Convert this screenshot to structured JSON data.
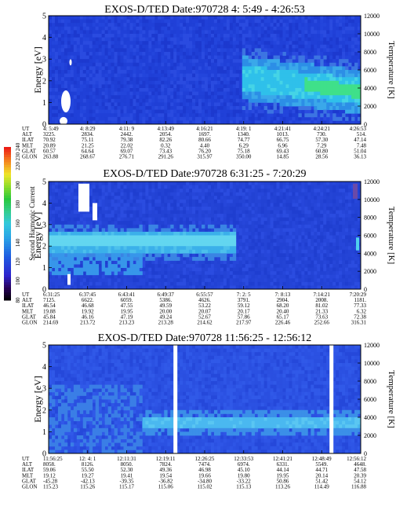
{
  "colorbar": {
    "title": "Second Harmonic Current",
    "ticks": [
      "240",
      "230",
      "220",
      "200",
      "180",
      "160",
      "140",
      "120",
      "100",
      "80"
    ]
  },
  "chart_data": [
    {
      "type": "heatmap",
      "title": "EXOS-D/TED   Date:970728  4: 5:49 - 4:26:53",
      "ylabel": "Energy [eV]",
      "ylabel_right": "Temperature [K]",
      "ylim": [
        0,
        5
      ],
      "ylim_right": [
        0,
        12000
      ],
      "yticks": [
        "0",
        "1",
        "2",
        "3",
        "4",
        "5"
      ],
      "yticks_right": [
        "0",
        "2000",
        "4000",
        "6000",
        "8000",
        "10000",
        "12000"
      ],
      "ephemeris": {
        "labels": [
          "UT",
          "ALT",
          "ILAT",
          "MLT",
          "GLAT",
          "GLON"
        ],
        "columns": [
          [
            "4: 5:49",
            "3225.",
            "70.92",
            "20.89",
            "60.57",
            "263.88"
          ],
          [
            "4: 8:29",
            "2834.",
            "75.11",
            "21.25",
            "64.64",
            "268.67"
          ],
          [
            "4:11: 9",
            "2442.",
            "79.38",
            "22.02",
            "69.07",
            "276.71"
          ],
          [
            "4:13:49",
            "2054.",
            "82.26",
            "0.32",
            "73.43",
            "291.26"
          ],
          [
            "4:16:21",
            "1697.",
            "80.66",
            "4.40",
            "76.20",
            "315.97"
          ],
          [
            "4:19: 1",
            "1340.",
            "74.77",
            "6.29",
            "75.18",
            "350.00"
          ],
          [
            "4:21:41",
            "1013.",
            "66.75",
            "6.96",
            "69.43",
            "14.85"
          ],
          [
            "4:24:21",
            "730.",
            "57.30",
            "7.29",
            "60.80",
            "28.56"
          ],
          [
            "4:26:53",
            "514.",
            "47.14",
            "7.48",
            "51.04",
            "36.13"
          ]
        ]
      },
      "gaps": []
    },
    {
      "type": "heatmap",
      "title": "EXOS-D/TED   Date:970728  6:31:25 - 7:20:29",
      "ylabel": "Energy [eV]",
      "ylabel_right": "Temperature [K]",
      "ylim": [
        0,
        5
      ],
      "ylim_right": [
        0,
        12000
      ],
      "yticks": [
        "0",
        "1",
        "2",
        "3",
        "4",
        "5"
      ],
      "yticks_right": [
        "0",
        "2000",
        "4000",
        "6000",
        "8000",
        "10000",
        "12000"
      ],
      "ephemeris": {
        "labels": [
          "UT",
          "ALT",
          "ILAT",
          "MLT",
          "GLAT",
          "GLON"
        ],
        "columns": [
          [
            "6:31:25",
            "7125.",
            "46.54",
            "19.88",
            "45.84",
            "214.69"
          ],
          [
            "6:37:45",
            "6622.",
            "46.68",
            "19.92",
            "46.16",
            "213.72"
          ],
          [
            "6:43:41",
            "6059.",
            "47.55",
            "19.95",
            "47.19",
            "213.23"
          ],
          [
            "6:49:37",
            "5386.",
            "49.59",
            "20.00",
            "49.24",
            "213.28"
          ],
          [
            "6:55:57",
            "4626.",
            "53.22",
            "20.07",
            "52.67",
            "214.62"
          ],
          [
            "7: 2: 5",
            "3791.",
            "59.12",
            "20.17",
            "57.86",
            "217.97"
          ],
          [
            "7: 8:13",
            "2904.",
            "68.20",
            "20.40",
            "65.17",
            "226.46"
          ],
          [
            "7:14:21",
            "2008.",
            "81.02",
            "21.33",
            "73.63",
            "252.66"
          ],
          [
            "7:20:29",
            "1181.",
            "77.33",
            "6.32",
            "72.38",
            "316.31"
          ]
        ]
      },
      "gaps": []
    },
    {
      "type": "heatmap",
      "title": "EXOS-D/TED   Date:970728  11:56:25 - 12:56:12",
      "ylabel": "Energy [eV]",
      "ylabel_right": "Temperature [K]",
      "ylim": [
        0,
        5
      ],
      "ylim_right": [
        0,
        12000
      ],
      "yticks": [
        "0",
        "1",
        "2",
        "3",
        "4",
        "5"
      ],
      "yticks_right": [
        "0",
        "2000",
        "4000",
        "6000",
        "8000",
        "10000",
        "12000"
      ],
      "ephemeris": {
        "labels": [
          "UT",
          "ALT",
          "ILAT",
          "MLT",
          "GLAT",
          "GLON"
        ],
        "columns": [
          [
            "11:56:25",
            "8058.",
            "59.06",
            "19.12",
            "-45.28",
            "115.23"
          ],
          [
            "12: 4: 1",
            "8126.",
            "55.50",
            "19.27",
            "-42.13",
            "115.26"
          ],
          [
            "12:11:31",
            "8050.",
            "52.30",
            "19.41",
            "-39.35",
            "115.17"
          ],
          [
            "12:19:11",
            "7824.",
            "49.36",
            "19.54",
            "-36.82",
            "115.06"
          ],
          [
            "12:26:25",
            "7474.",
            "46.98",
            "19.66",
            "-34.80",
            "115.02"
          ],
          [
            "12:33:53",
            "6974.",
            "45.10",
            "19.80",
            "-33.22",
            "115.13"
          ],
          [
            "12:41:21",
            "6331.",
            "44.14",
            "19.95",
            "50.86",
            "113.26"
          ],
          [
            "12:48:49",
            "5549.",
            "44.71",
            "20.14",
            "51.42",
            "114.49"
          ],
          [
            "12:56:12",
            "4648.",
            "47.58",
            "20.39",
            "54.12",
            "116.88"
          ]
        ]
      },
      "gaps": [
        0.4,
        0.9
      ]
    }
  ]
}
